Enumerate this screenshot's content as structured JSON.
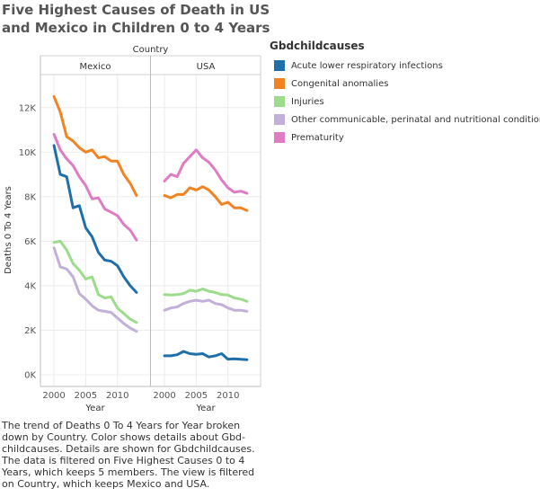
{
  "title_lines": [
    "Five Highest Causes of Death in US",
    "and Mexico in Children 0 to 4 Years"
  ],
  "legend": {
    "title": "Gbdchildcauses",
    "items": [
      {
        "label": "Acute lower respiratory infections",
        "color": "#1f6fa8"
      },
      {
        "label": "Congenital anomalies",
        "color": "#f28323"
      },
      {
        "label": "Injuries",
        "color": "#9ddc8c"
      },
      {
        "label": "Other communicable, perinatal and nutritional conditions",
        "color": "#c3b0d8"
      },
      {
        "label": "Prematurity",
        "color": "#de7cc4"
      }
    ]
  },
  "caption": "The trend of Deaths 0 To 4 Years for Year broken down by Country.  Color shows details about Gbd-childcauses.  Details are shown for Gbdchildcauses. The data is filtered on Five Highest Causes 0 to 4 Years, which keeps 5 members. The view is filtered on Country, which keeps Mexico and USA.",
  "chart_data": {
    "type": "line",
    "column_header": "Country",
    "ylabel": "Deaths 0 To 4 Years",
    "xlabel": "Year",
    "ylim": [
      0,
      13000
    ],
    "yticks": [
      0,
      2000,
      4000,
      6000,
      8000,
      10000,
      12000
    ],
    "ytick_labels": [
      "0K",
      "2K",
      "4K",
      "6K",
      "8K",
      "10K",
      "12K"
    ],
    "xlim": [
      1999,
      2014
    ],
    "xticks": [
      2000,
      2005,
      2010
    ],
    "grid": true,
    "legend_position": "right",
    "x": [
      2000,
      2001,
      2002,
      2003,
      2004,
      2005,
      2006,
      2007,
      2008,
      2009,
      2010,
      2011,
      2012,
      2013
    ],
    "panels": [
      {
        "country": "Mexico",
        "series": [
          {
            "name": "Acute lower respiratory infections",
            "values": [
              10300,
              9000,
              8900,
              7500,
              7600,
              6600,
              6200,
              5500,
              5150,
              5100,
              4900,
              4400,
              4000,
              3700
            ]
          },
          {
            "name": "Congenital anomalies",
            "values": [
              12500,
              11800,
              10700,
              10500,
              10200,
              10000,
              10100,
              9750,
              9800,
              9600,
              9600,
              9000,
              8600,
              8050
            ]
          },
          {
            "name": "Injuries",
            "values": [
              5950,
              6000,
              5600,
              5000,
              4700,
              4300,
              4400,
              3600,
              3450,
              3500,
              3000,
              2750,
              2500,
              2350
            ]
          },
          {
            "name": "Other communicable, perinatal and nutritional conditions",
            "values": [
              5700,
              4850,
              4750,
              4400,
              3650,
              3400,
              3100,
              2900,
              2850,
              2800,
              2550,
              2300,
              2100,
              1950
            ]
          },
          {
            "name": "Prematurity",
            "values": [
              10800,
              10100,
              9700,
              9400,
              8900,
              8500,
              7900,
              7950,
              7450,
              7300,
              7150,
              6750,
              6500,
              6050
            ]
          }
        ]
      },
      {
        "country": "USA",
        "series": [
          {
            "name": "Acute lower respiratory infections",
            "values": [
              850,
              850,
              900,
              1050,
              950,
              920,
              950,
              800,
              850,
              950,
              700,
              720,
              700,
              680
            ]
          },
          {
            "name": "Congenital anomalies",
            "values": [
              8050,
              7950,
              8100,
              8100,
              8400,
              8300,
              8450,
              8300,
              8000,
              7650,
              7750,
              7500,
              7500,
              7380
            ]
          },
          {
            "name": "Injuries",
            "values": [
              3600,
              3580,
              3600,
              3650,
              3800,
              3750,
              3850,
              3750,
              3700,
              3600,
              3580,
              3450,
              3400,
              3300
            ]
          },
          {
            "name": "Other communicable, perinatal and nutritional conditions",
            "values": [
              2900,
              3000,
              3050,
              3200,
              3300,
              3350,
              3300,
              3350,
              3200,
              3150,
              3000,
              2900,
              2900,
              2850
            ]
          },
          {
            "name": "Prematurity",
            "values": [
              8700,
              9000,
              8900,
              9500,
              9800,
              10100,
              9750,
              9550,
              9200,
              8750,
              8400,
              8200,
              8250,
              8150
            ]
          }
        ]
      }
    ]
  }
}
